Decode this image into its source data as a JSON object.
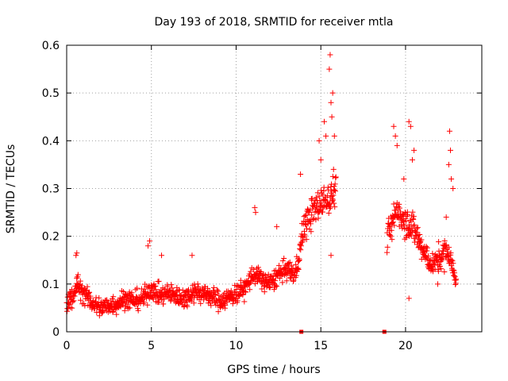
{
  "chart_data": {
    "type": "scatter",
    "title": "Day 193 of 2018, SRMTID for receiver mtla",
    "xlabel": "GPS time / hours",
    "ylabel": "SRMTID / TECUs",
    "xlim": [
      0,
      24.5
    ],
    "ylim": [
      0,
      0.6
    ],
    "xticks": [
      0,
      5,
      10,
      15,
      20
    ],
    "yticks": [
      0,
      0.1,
      0.2,
      0.3,
      0.4,
      0.5,
      0.6
    ],
    "ytick_labels": [
      "0",
      "0.1",
      "0.2",
      "0.3",
      "0.4",
      "0.5",
      "0.6"
    ],
    "grid": true,
    "marker": "plus",
    "color": "#ff0000",
    "zero_markers_x": [
      13.85,
      18.75
    ],
    "series": [
      {
        "name": "SRMTID",
        "profile_segments": [
          {
            "x": [
              0.0,
              0.3,
              0.6,
              1.0,
              1.5,
              2.0,
              2.5,
              3.0,
              3.5,
              4.0,
              4.5,
              5.0,
              5.5,
              6.0,
              6.5,
              7.0,
              7.5,
              8.0,
              8.5,
              9.0,
              9.5,
              10.0,
              10.5,
              11.0,
              11.5,
              12.0,
              12.5,
              13.0,
              13.5,
              14.0,
              14.5,
              15.0,
              15.5,
              15.9
            ],
            "y": [
              0.06,
              0.07,
              0.1,
              0.08,
              0.06,
              0.05,
              0.055,
              0.06,
              0.07,
              0.065,
              0.07,
              0.09,
              0.075,
              0.08,
              0.075,
              0.07,
              0.085,
              0.08,
              0.075,
              0.065,
              0.07,
              0.08,
              0.09,
              0.12,
              0.11,
              0.1,
              0.12,
              0.13,
              0.12,
              0.22,
              0.25,
              0.27,
              0.28,
              0.3
            ]
          },
          {
            "x": [
              18.9,
              19.2,
              19.5,
              19.8,
              20.1,
              20.4,
              20.7,
              21.0,
              21.3,
              21.6,
              21.9,
              22.2,
              22.5,
              22.8,
              23.0
            ],
            "y": [
              0.2,
              0.22,
              0.26,
              0.24,
              0.23,
              0.22,
              0.2,
              0.17,
              0.15,
              0.14,
              0.15,
              0.16,
              0.17,
              0.13,
              0.11
            ]
          }
        ],
        "spread": 0.035,
        "outliers": [
          [
            0.55,
            0.16
          ],
          [
            0.6,
            0.165
          ],
          [
            4.8,
            0.18
          ],
          [
            4.9,
            0.19
          ],
          [
            5.6,
            0.16
          ],
          [
            7.4,
            0.16
          ],
          [
            11.1,
            0.26
          ],
          [
            11.15,
            0.25
          ],
          [
            12.4,
            0.22
          ],
          [
            13.8,
            0.33
          ],
          [
            14.9,
            0.4
          ],
          [
            15.0,
            0.36
          ],
          [
            15.2,
            0.44
          ],
          [
            15.3,
            0.41
          ],
          [
            15.5,
            0.55
          ],
          [
            15.55,
            0.58
          ],
          [
            15.6,
            0.48
          ],
          [
            15.65,
            0.45
          ],
          [
            15.7,
            0.5
          ],
          [
            15.8,
            0.41
          ],
          [
            15.75,
            0.34
          ],
          [
            15.6,
            0.16
          ],
          [
            19.3,
            0.43
          ],
          [
            19.4,
            0.41
          ],
          [
            19.5,
            0.39
          ],
          [
            20.2,
            0.44
          ],
          [
            20.3,
            0.43
          ],
          [
            20.4,
            0.36
          ],
          [
            20.5,
            0.38
          ],
          [
            19.9,
            0.32
          ],
          [
            20.2,
            0.07
          ],
          [
            21.9,
            0.1
          ],
          [
            22.4,
            0.24
          ],
          [
            22.6,
            0.42
          ],
          [
            22.65,
            0.38
          ],
          [
            22.7,
            0.32
          ],
          [
            22.8,
            0.3
          ],
          [
            22.55,
            0.35
          ]
        ]
      }
    ]
  }
}
